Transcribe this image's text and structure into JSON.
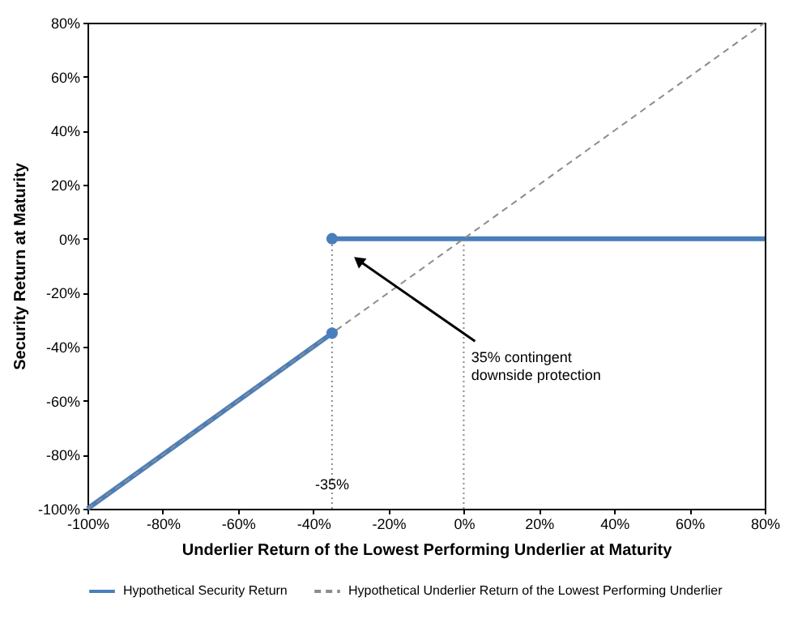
{
  "chart_data": {
    "type": "line",
    "xlabel": "Underlier Return of the Lowest Performing Underlier at Maturity",
    "ylabel": "Security Return at Maturity",
    "xlim": [
      -100,
      80
    ],
    "ylim": [
      -100,
      80
    ],
    "xticks": [
      {
        "value": -100,
        "label": "-100%"
      },
      {
        "value": -80,
        "label": "-80%"
      },
      {
        "value": -60,
        "label": "-60%"
      },
      {
        "value": -40,
        "label": "-40%"
      },
      {
        "value": -20,
        "label": "-20%"
      },
      {
        "value": 0,
        "label": "0%"
      },
      {
        "value": 20,
        "label": "20%"
      },
      {
        "value": 40,
        "label": "40%"
      },
      {
        "value": 60,
        "label": "60%"
      },
      {
        "value": 80,
        "label": "80%"
      }
    ],
    "yticks": [
      {
        "value": -100,
        "label": "-100%"
      },
      {
        "value": -80,
        "label": "-80%"
      },
      {
        "value": -60,
        "label": "-60%"
      },
      {
        "value": -40,
        "label": "-40%"
      },
      {
        "value": -20,
        "label": "-20%"
      },
      {
        "value": 0,
        "label": "0%"
      },
      {
        "value": 20,
        "label": "20%"
      },
      {
        "value": 40,
        "label": "40%"
      },
      {
        "value": 60,
        "label": "60%"
      },
      {
        "value": 80,
        "label": "80%"
      }
    ],
    "series": [
      {
        "name": "Hypothetical Security Return",
        "color": "#4a7ebb",
        "x": [
          -35,
          80
        ],
        "values": [
          0,
          0
        ],
        "line_style": "solid"
      },
      {
        "color": "#4a7ebb",
        "x": [
          -100,
          -35
        ],
        "values": [
          -100,
          -35
        ],
        "line_style": "solid"
      },
      {
        "name": "Hypothetical Underlier Return of the Lowest Performing Underlier",
        "color": "#8c8c8c",
        "x": [
          -100,
          80
        ],
        "values": [
          -100,
          80
        ],
        "line_style": "dashed"
      },
      {
        "color": "#8c8c8c",
        "x": [
          -35,
          -35
        ],
        "values": [
          -100,
          0
        ],
        "line_style": "dotted"
      },
      {
        "color": "#8c8c8c",
        "x": [
          0,
          0
        ],
        "values": [
          -100,
          0
        ],
        "line_style": "dotted"
      },
      {
        "type": "scatter",
        "color": "#4a7ebb",
        "x": [
          -35,
          -35
        ],
        "values": [
          0,
          -35
        ],
        "marker": "circle"
      }
    ],
    "annotations": [
      {
        "text": "-35%",
        "x": -35,
        "y": -91
      },
      "35% contingent downside protection"
    ],
    "grid": false,
    "legend": "bottom"
  }
}
